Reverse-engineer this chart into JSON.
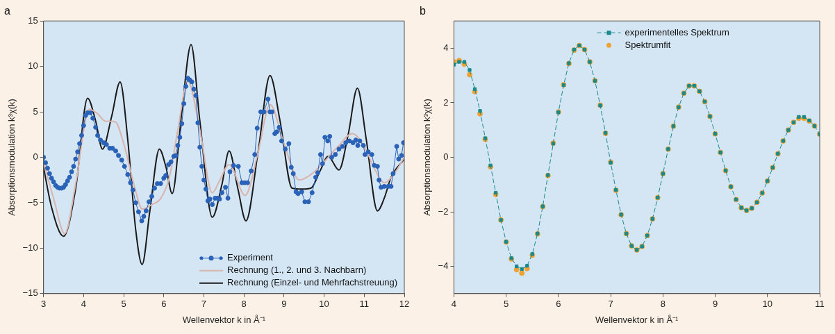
{
  "chart_data": [
    {
      "type": "line",
      "title": "a",
      "xlabel": "Wellenvektor k in Å⁻¹",
      "ylabel": "Absorptionsmodulation k³χ(k)",
      "xlim": [
        3,
        12
      ],
      "ylim": [
        -15,
        15
      ],
      "xticks": [
        3,
        4,
        5,
        6,
        7,
        8,
        9,
        10,
        11,
        12
      ],
      "yticks": [
        -15,
        -10,
        -5,
        0,
        5,
        10,
        15
      ],
      "legend": "bottom right",
      "marker": "none",
      "line_style": "solid",
      "series": [
        {
          "name": "Experiment",
          "color": "#2a62b8",
          "marker": "circle",
          "x": [
            3.0,
            3.05,
            3.1,
            3.15,
            3.2,
            3.25,
            3.3,
            3.35,
            3.4,
            3.45,
            3.5,
            3.55,
            3.6,
            3.65,
            3.7,
            3.75,
            3.8,
            3.85,
            3.9,
            3.95,
            4.0,
            4.05,
            4.1,
            4.17,
            4.23,
            4.3,
            4.35,
            4.42,
            4.5,
            4.57,
            4.65,
            4.72,
            4.8,
            4.87,
            4.95,
            5.02,
            5.1,
            5.17,
            5.23,
            5.3,
            5.37,
            5.45,
            5.5,
            5.56,
            5.63,
            5.7,
            5.77,
            5.84,
            5.92,
            6.0,
            6.05,
            6.12,
            6.18,
            6.25,
            6.3,
            6.35,
            6.4,
            6.45,
            6.5,
            6.55,
            6.6,
            6.65,
            6.7,
            6.75,
            6.8,
            6.85,
            6.9,
            6.95,
            7.0,
            7.05,
            7.1,
            7.15,
            7.21,
            7.28,
            7.34,
            7.39,
            7.45,
            7.54,
            7.6,
            7.65,
            7.74,
            7.86,
            7.95,
            8.02,
            8.09,
            8.18,
            8.27,
            8.33,
            8.42,
            8.5,
            8.6,
            8.65,
            8.7,
            8.77,
            8.82,
            8.88,
            8.94,
            9.03,
            9.12,
            9.18,
            9.23,
            9.3,
            9.35,
            9.44,
            9.52,
            9.61,
            9.7,
            9.79,
            9.84,
            9.91,
            9.96,
            10.02,
            10.09,
            10.14,
            10.19,
            10.28,
            10.37,
            10.46,
            10.54,
            10.63,
            10.72,
            10.79,
            10.84,
            10.89,
            10.98,
            11.02,
            11.1,
            11.19,
            11.25,
            11.33,
            11.37,
            11.42,
            11.5,
            11.6,
            11.67,
            11.72,
            11.81,
            11.86,
            11.93,
            11.98
          ],
          "values": [
            0,
            -0.6,
            -1.2,
            -1.8,
            -2.3,
            -2.7,
            -3.1,
            -3.3,
            -3.4,
            -3.4,
            -3.3,
            -3.0,
            -2.6,
            -2.2,
            -1.6,
            -1.0,
            -0.2,
            0.6,
            1.5,
            2.4,
            3.5,
            4.6,
            4.9,
            4.9,
            4.3,
            3.3,
            2.4,
            1.9,
            1.6,
            1.4,
            1.0,
            1.0,
            0.7,
            0.2,
            -0.3,
            -1.0,
            -1.9,
            -2.8,
            -3.6,
            -5.0,
            -6.0,
            -7.0,
            -6.5,
            -5.9,
            -4.9,
            -4.3,
            -3.4,
            -2.9,
            -2.9,
            -2.3,
            -2.0,
            -0.8,
            -0.5,
            0.1,
            0.2,
            1.3,
            2.2,
            3.7,
            5.9,
            7.8,
            8.7,
            8.5,
            8.3,
            7.5,
            6.8,
            3.8,
            1.1,
            -1.0,
            -2.5,
            -3.5,
            -4.8,
            -4.6,
            -5.2,
            -4.5,
            -4.5,
            -4.6,
            -3.9,
            -3.3,
            -4.5,
            -1.6,
            -0.9,
            -1.0,
            -2.8,
            -2.8,
            -2.8,
            -1.5,
            0.3,
            3.2,
            5.0,
            5.0,
            6.4,
            5.0,
            5.0,
            2.6,
            2.8,
            3.3,
            1.8,
            0.9,
            1.5,
            -1.1,
            -1.8,
            -3.8,
            -4.0,
            -3.8,
            -4.9,
            -4.9,
            -3.9,
            -2.2,
            -1.7,
            0.3,
            -0.7,
            2.2,
            1.8,
            2.3,
            0,
            0.3,
            0.9,
            1.2,
            1.6,
            1.8,
            1.6,
            1.9,
            1.3,
            1.8,
            1.3,
            0.3,
            0.6,
            0.3,
            -0.9,
            -1.0,
            -2.5,
            -3.3,
            -3.2,
            -3.2,
            -3.2,
            -1.8,
            1.2,
            -0.2,
            0.2,
            1.6
          ]
        },
        {
          "name": "Rechnung (1., 2. und 3. Nachbarn)",
          "color": "#d9b4ac",
          "x": [
            3,
            3.25,
            3.53,
            3.8,
            4.14,
            4.35,
            4.53,
            4.79,
            5.0,
            5.28,
            5.46,
            5.7,
            5.93,
            6.14,
            6.35,
            6.6,
            6.9,
            7.21,
            7.4,
            7.63,
            8.03,
            8.35,
            8.65,
            9.0,
            9.38,
            9.7,
            10.0,
            10.35,
            10.7,
            11.0,
            11.25,
            11.5,
            11.75,
            12
          ],
          "values": [
            -0.5,
            -4.5,
            -8.4,
            -3.0,
            5.3,
            4.8,
            4.0,
            3.9,
            1.5,
            -3.4,
            -5.7,
            -5.2,
            -4.5,
            -2.2,
            3.0,
            8.4,
            3.0,
            -3.9,
            -2.5,
            -0.8,
            -4.2,
            0.5,
            5.8,
            1.5,
            -2.5,
            -1.8,
            -0.5,
            1.2,
            2.6,
            1.2,
            -1.2,
            -2.8,
            -1.8,
            0.0
          ]
        },
        {
          "name": "Rechnung (Einzel- und Mehrfachstreuung)",
          "color": "#1a1a1a",
          "x": [
            3,
            3.2,
            3.5,
            3.8,
            4.1,
            4.3,
            4.47,
            4.7,
            4.91,
            5.1,
            5.3,
            5.46,
            5.65,
            5.89,
            6.05,
            6.21,
            6.45,
            6.68,
            6.9,
            7.21,
            7.45,
            7.63,
            7.85,
            8.05,
            8.35,
            8.65,
            8.9,
            9.2,
            9.45,
            9.67,
            9.9,
            10.1,
            10.37,
            10.6,
            10.83,
            11.05,
            11.33,
            11.5,
            11.67,
            12
          ],
          "values": [
            -1.1,
            -5.5,
            -8.7,
            -3.5,
            6.5,
            4.0,
            0.9,
            4.5,
            8.3,
            2.0,
            -8.0,
            -11.8,
            -6.0,
            0.9,
            -1.0,
            -4.0,
            5.0,
            12.4,
            4.0,
            -6.6,
            -3.0,
            0.7,
            -3.5,
            -7.0,
            0.5,
            9.0,
            4.0,
            -3.4,
            -3.5,
            -3.4,
            -1.5,
            0.1,
            -1.4,
            2.5,
            7.6,
            2.0,
            -5.9,
            -4.5,
            -2.2,
            -0.2
          ]
        }
      ]
    },
    {
      "type": "line",
      "title": "b",
      "xlabel": "Wellenvektor k in Å⁻¹",
      "ylabel": "Absorptionsmodulation k³χ(k)",
      "xlim": [
        4,
        11
      ],
      "ylim": [
        -5,
        5
      ],
      "xticks": [
        4,
        5,
        6,
        7,
        8,
        9,
        10,
        11
      ],
      "yticks": [
        -4,
        -2,
        0,
        2,
        4
      ],
      "legend": "top",
      "marker": "square",
      "line_style": "dashed",
      "x": [
        4.0,
        4.1,
        4.2,
        4.3,
        4.4,
        4.5,
        4.6,
        4.7,
        4.8,
        4.9,
        5.0,
        5.1,
        5.2,
        5.3,
        5.4,
        5.5,
        5.6,
        5.7,
        5.8,
        5.9,
        6.0,
        6.1,
        6.2,
        6.3,
        6.4,
        6.5,
        6.6,
        6.7,
        6.8,
        6.9,
        7.0,
        7.1,
        7.2,
        7.3,
        7.4,
        7.5,
        7.6,
        7.7,
        7.8,
        7.9,
        8.0,
        8.1,
        8.2,
        8.3,
        8.4,
        8.5,
        8.6,
        8.7,
        8.8,
        8.9,
        9.0,
        9.1,
        9.2,
        9.3,
        9.4,
        9.5,
        9.6,
        9.7,
        9.8,
        9.9,
        10.0,
        10.1,
        10.2,
        10.3,
        10.4,
        10.5,
        10.6,
        10.7,
        10.8,
        10.9,
        11.0
      ],
      "series": [
        {
          "name": "experimentelles Spektrum",
          "color": "#178a8c",
          "values": [
            3.4,
            3.5,
            3.5,
            3.2,
            2.5,
            1.7,
            0.7,
            -0.3,
            -1.3,
            -2.3,
            -3.1,
            -3.7,
            -4.0,
            -4.1,
            -3.98,
            -3.55,
            -2.8,
            -1.8,
            -0.65,
            0.5,
            1.65,
            2.65,
            3.45,
            3.95,
            4.1,
            3.95,
            3.5,
            2.8,
            1.9,
            0.9,
            -0.2,
            -1.2,
            -2.1,
            -2.8,
            -3.25,
            -3.4,
            -3.27,
            -2.87,
            -2.26,
            -1.48,
            -0.6,
            0.3,
            1.14,
            1.84,
            2.35,
            2.62,
            2.62,
            2.42,
            2.04,
            1.5,
            0.86,
            0.18,
            -0.49,
            -1.08,
            -1.55,
            -1.85,
            -1.95,
            -1.87,
            -1.65,
            -1.31,
            -0.87,
            -0.38,
            0.13,
            0.6,
            1.0,
            1.28,
            1.48,
            1.48,
            1.35,
            1.15,
            0.85
          ]
        },
        {
          "name": "Spektrumfit",
          "color": "#f0a232",
          "type": "scatter",
          "marker": "circle",
          "values": [
            3.5,
            3.55,
            3.42,
            3.03,
            2.41,
            1.6,
            0.66,
            -0.35,
            -1.36,
            -2.3,
            -3.11,
            -3.73,
            -4.12,
            -4.25,
            -4.08,
            -3.59,
            -2.81,
            -1.81,
            -0.67,
            0.52,
            1.66,
            2.66,
            3.44,
            3.93,
            4.1,
            3.95,
            3.5,
            2.81,
            1.91,
            0.88,
            -0.18,
            -1.21,
            -2.11,
            -2.8,
            -3.25,
            -3.4,
            -3.27,
            -2.87,
            -2.26,
            -1.48,
            -0.6,
            0.3,
            1.14,
            1.84,
            2.35,
            2.62,
            2.62,
            2.42,
            2.04,
            1.5,
            0.86,
            0.18,
            -0.49,
            -1.08,
            -1.55,
            -1.85,
            -1.95,
            -1.87,
            -1.65,
            -1.31,
            -0.87,
            -0.38,
            0.13,
            0.6,
            1.0,
            1.28,
            1.43,
            1.43,
            1.33,
            1.15,
            0.85
          ]
        }
      ]
    }
  ]
}
